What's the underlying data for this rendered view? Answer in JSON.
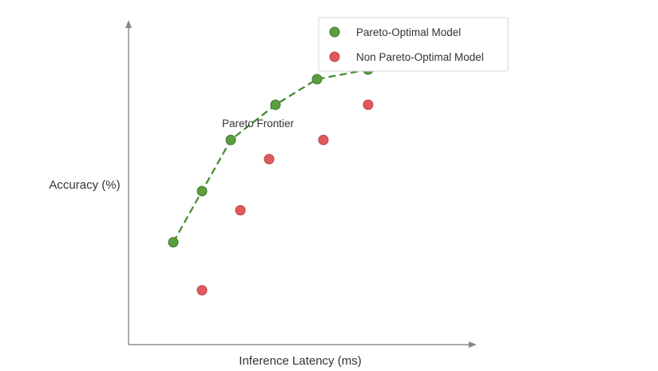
{
  "chart_data": {
    "type": "scatter",
    "title": "",
    "xlabel": "Inference Latency (ms)",
    "ylabel": "Accuracy (%)",
    "xlim": [
      0,
      100
    ],
    "ylim": [
      0,
      100
    ],
    "axis_ticks": false,
    "grid": false,
    "legend_position": "top-right",
    "annotations": [
      {
        "text": "Pareto Frontier",
        "x": 49,
        "y": 82
      }
    ],
    "series": [
      {
        "name": "Pareto-Optimal Model",
        "color": "#5a9e3f",
        "edge_color": "#3f7a2a",
        "connect_with_dashed_line": true,
        "line_color": "#3f8a2c",
        "x": [
          14,
          23,
          32,
          46,
          59,
          75
        ],
        "y": [
          32,
          48,
          64,
          75,
          83,
          86
        ]
      },
      {
        "name": "Non Pareto-Optimal Model",
        "color": "#e0595c",
        "edge_color": "#b84346",
        "connect_with_dashed_line": false,
        "x": [
          23,
          35,
          44,
          61,
          75
        ],
        "y": [
          17,
          42,
          58,
          64,
          75
        ]
      }
    ]
  }
}
